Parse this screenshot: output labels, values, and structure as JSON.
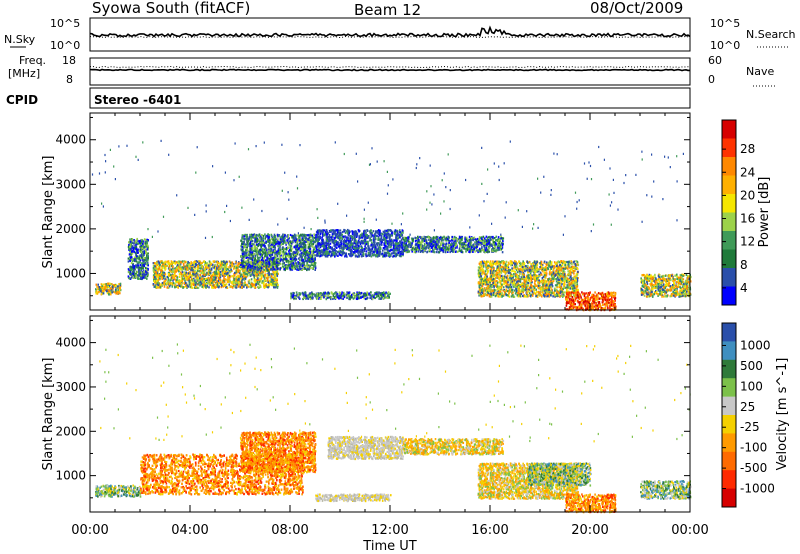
{
  "header": {
    "station": "Syowa South (fitACF)",
    "beam": "Beam 12",
    "date": "08/Oct/2009"
  },
  "panels": {
    "nsky": {
      "left_label": "N.Sky",
      "right_label": "N.Search",
      "ticks_left": [
        "10^5",
        "10^0"
      ],
      "ticks_right": [
        "10^5",
        "10^0"
      ]
    },
    "freq": {
      "left_label_1": "Freq.",
      "left_label_2": "[MHz]",
      "ticks_left": [
        "18",
        "8"
      ],
      "ticks_right": [
        "60",
        "0"
      ],
      "right_label": "Nave"
    },
    "cpid": {
      "label": "CPID",
      "value": "Stereo -6401"
    }
  },
  "chart_data": [
    {
      "type": "heatmap",
      "title": "",
      "xlabel": "",
      "ylabel": "Slant Range [km]",
      "x_ticks": [
        "00:00",
        "04:00",
        "08:00",
        "12:00",
        "16:00",
        "20:00",
        "00:00"
      ],
      "y_ticks": [
        1000,
        2000,
        3000,
        4000
      ],
      "ylim": [
        180,
        4600
      ],
      "xlim_hours": [
        0,
        24
      ],
      "colorbar": {
        "label": "Power [dB]",
        "ticks": [
          "28",
          "24",
          "20",
          "16",
          "12",
          "8",
          "4"
        ],
        "colors": [
          "#d60000",
          "#ff3300",
          "#ff8800",
          "#ffb000",
          "#f5e600",
          "#9cd24a",
          "#3f9a58",
          "#1f7a3a",
          "#2a4faa",
          "#0000ff"
        ]
      },
      "bands": [
        {
          "h0": 0.2,
          "h1": 1.2,
          "r0": 550,
          "r1": 800,
          "value_class": "strong"
        },
        {
          "h0": 1.5,
          "h1": 2.3,
          "r0": 900,
          "r1": 1800,
          "value_class": "medium"
        },
        {
          "h0": 2.5,
          "h1": 7.5,
          "r0": 700,
          "r1": 1300,
          "value_class": "strong"
        },
        {
          "h0": 6.0,
          "h1": 9.0,
          "r0": 1100,
          "r1": 1900,
          "value_class": "medium"
        },
        {
          "h0": 9.0,
          "h1": 12.5,
          "r0": 1400,
          "r1": 2000,
          "value_class": "weak"
        },
        {
          "h0": 12.5,
          "h1": 16.5,
          "r0": 1500,
          "r1": 1850,
          "value_class": "medium"
        },
        {
          "h0": 15.5,
          "h1": 19.5,
          "r0": 500,
          "r1": 1300,
          "value_class": "strong"
        },
        {
          "h0": 19.0,
          "h1": 21.0,
          "r0": 200,
          "r1": 600,
          "value_class": "very-strong"
        },
        {
          "h0": 22.0,
          "h1": 24.0,
          "r0": 500,
          "r1": 1000,
          "value_class": "strong"
        },
        {
          "h0": 8.0,
          "h1": 12.0,
          "r0": 450,
          "r1": 600,
          "value_class": "medium"
        }
      ]
    },
    {
      "type": "heatmap",
      "title": "",
      "xlabel": "Time UT",
      "ylabel": "Slant Range [km]",
      "x_ticks": [
        "00:00",
        "04:00",
        "08:00",
        "12:00",
        "16:00",
        "20:00",
        "00:00"
      ],
      "y_ticks": [
        1000,
        2000,
        3000,
        4000
      ],
      "ylim": [
        180,
        4600
      ],
      "xlim_hours": [
        0,
        24
      ],
      "colorbar": {
        "label": "Velocity [m s^-1]",
        "ticks": [
          "1000",
          "500",
          "100",
          "25",
          "-25",
          "-100",
          "-500",
          "-1000"
        ],
        "colors": [
          "#2a4faa",
          "#3f8fc0",
          "#2f7a3a",
          "#7cc14a",
          "#c8c8c8",
          "#f5d000",
          "#ff9a00",
          "#ff6a00",
          "#ff2a00",
          "#d60000"
        ]
      },
      "bands": [
        {
          "h0": 0.2,
          "h1": 2.0,
          "r0": 550,
          "r1": 800,
          "value_class": "green"
        },
        {
          "h0": 2.0,
          "h1": 8.5,
          "r0": 600,
          "r1": 1500,
          "value_class": "orange"
        },
        {
          "h0": 6.0,
          "h1": 9.0,
          "r0": 1100,
          "r1": 2000,
          "value_class": "orange"
        },
        {
          "h0": 9.5,
          "h1": 12.5,
          "r0": 1400,
          "r1": 1900,
          "value_class": "grey"
        },
        {
          "h0": 12.5,
          "h1": 16.5,
          "r0": 1500,
          "r1": 1850,
          "value_class": "yellow"
        },
        {
          "h0": 15.5,
          "h1": 19.5,
          "r0": 500,
          "r1": 1300,
          "value_class": "yellow"
        },
        {
          "h0": 17.5,
          "h1": 20.0,
          "r0": 800,
          "r1": 1300,
          "value_class": "green"
        },
        {
          "h0": 19.0,
          "h1": 21.0,
          "r0": 200,
          "r1": 600,
          "value_class": "orange"
        },
        {
          "h0": 22.0,
          "h1": 24.0,
          "r0": 500,
          "r1": 900,
          "value_class": "green"
        },
        {
          "h0": 9.0,
          "h1": 12.0,
          "r0": 450,
          "r1": 600,
          "value_class": "grey"
        }
      ]
    }
  ]
}
